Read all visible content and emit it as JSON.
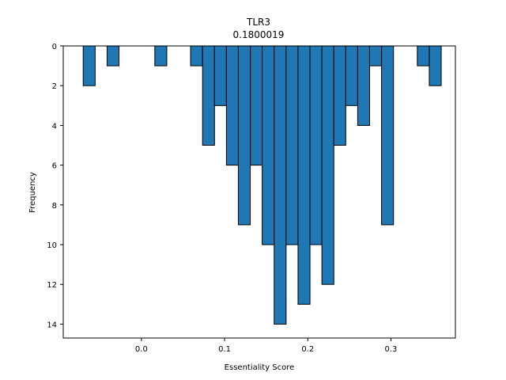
{
  "chart_data": {
    "type": "bar",
    "title": "TLR3",
    "subtitle": "0.1800019",
    "xlabel": "Essentiality Score",
    "ylabel": "Frequency",
    "y_inverted": true,
    "xlim": [
      -0.094,
      0.3775
    ],
    "ylim": [
      14.7,
      0
    ],
    "grid": false,
    "bin_width": 0.01435,
    "bins": [
      {
        "x": -0.07,
        "count": 2
      },
      {
        "x": -0.0413,
        "count": 1
      },
      {
        "x": 0.0161,
        "count": 1
      },
      {
        "x": 0.0591,
        "count": 1
      },
      {
        "x": 0.0735,
        "count": 5
      },
      {
        "x": 0.0878,
        "count": 3
      },
      {
        "x": 0.1022,
        "count": 6
      },
      {
        "x": 0.1165,
        "count": 9
      },
      {
        "x": 0.1309,
        "count": 6
      },
      {
        "x": 0.1452,
        "count": 10
      },
      {
        "x": 0.1596,
        "count": 14
      },
      {
        "x": 0.1739,
        "count": 10
      },
      {
        "x": 0.1883,
        "count": 13
      },
      {
        "x": 0.2026,
        "count": 10
      },
      {
        "x": 0.217,
        "count": 12
      },
      {
        "x": 0.2313,
        "count": 5
      },
      {
        "x": 0.2457,
        "count": 3
      },
      {
        "x": 0.26,
        "count": 4
      },
      {
        "x": 0.2743,
        "count": 1
      },
      {
        "x": 0.2887,
        "count": 9
      },
      {
        "x": 0.3317,
        "count": 1
      },
      {
        "x": 0.3461,
        "count": 2
      }
    ],
    "xticks": [
      "0.0",
      "0.1",
      "0.2",
      "0.3"
    ],
    "xtick_values": [
      0.0,
      0.1,
      0.2,
      0.3
    ],
    "yticks": [
      "0",
      "2",
      "4",
      "6",
      "8",
      "10",
      "12",
      "14"
    ],
    "ytick_values": [
      0,
      2,
      4,
      6,
      8,
      10,
      12,
      14
    ],
    "bar_color": "#1f77b4",
    "edge_color": "#000000"
  }
}
